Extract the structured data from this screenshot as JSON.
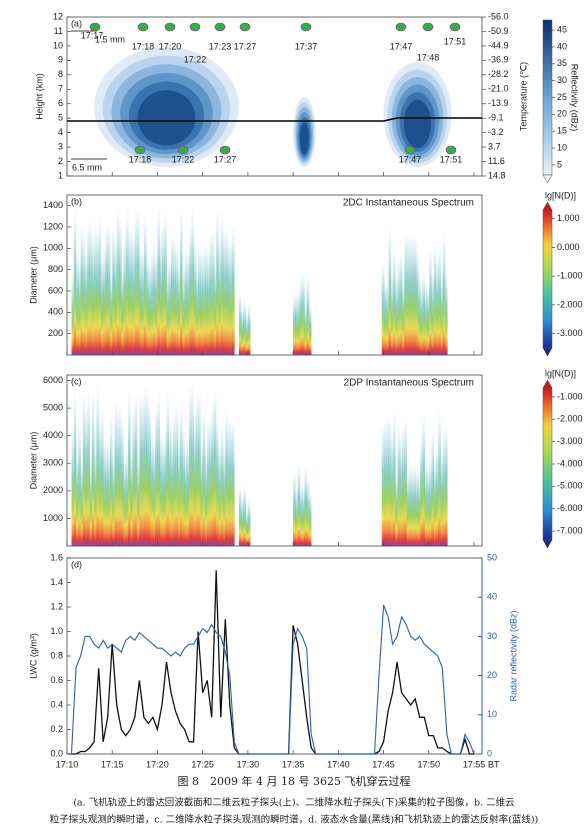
{
  "chart_data": [
    {
      "type": "heatmap",
      "label": "(a)",
      "ylabel": "Height (km)",
      "y2label": "Temperature (℃)",
      "ylim": [
        1,
        12
      ],
      "yticks": [
        1,
        2,
        3,
        4,
        5,
        6,
        7,
        8,
        9,
        10,
        11,
        12
      ],
      "y2ticks": [
        {
          "value": 12,
          "label": "-56.0"
        },
        {
          "value": 11,
          "label": "-50.9"
        },
        {
          "value": 10,
          "label": "-44.9"
        },
        {
          "value": 9,
          "label": "-36.9"
        },
        {
          "value": 8,
          "label": "-28.2"
        },
        {
          "value": 7,
          "label": "-21.0"
        },
        {
          "value": 6,
          "label": "-13.9"
        },
        {
          "value": 5,
          "label": "-9.1"
        },
        {
          "value": 4,
          "label": "-3.2"
        },
        {
          "value": 3,
          "label": "3.7"
        },
        {
          "value": 2,
          "label": "11.6"
        },
        {
          "value": 1,
          "label": "14.8"
        }
      ],
      "colorbar": {
        "label": "Reflectivity (dBz)",
        "clim": [
          2,
          48
        ],
        "ticks": [
          5,
          10,
          15,
          20,
          25,
          30,
          35,
          40,
          45
        ]
      },
      "annotations": [
        "1.5 mm",
        "6.5 mm",
        "17:17",
        "17:18",
        "17:20",
        "17:22",
        "17:23",
        "17:27",
        "17:37",
        "17:47",
        "17:48",
        "17:51",
        "17:18",
        "17:22",
        "17:27",
        "17:47",
        "17:51"
      ]
    },
    {
      "type": "heatmap",
      "label": "(b)",
      "title": "2DC Instantaneous Spectrum",
      "ylabel": "Diameter (μm)",
      "ylim": [
        0,
        1500
      ],
      "yticks": [
        200,
        400,
        600,
        800,
        1000,
        1200,
        1400
      ],
      "colorbar": {
        "label": "lg[N(D)]",
        "clim": [
          -3.5,
          1.3
        ],
        "ticks": [
          {
            "value": 1,
            "label": "1.000"
          },
          {
            "value": 0,
            "label": "0.000"
          },
          {
            "value": -1,
            "label": "-1.000"
          },
          {
            "value": -2,
            "label": "-2.000"
          },
          {
            "value": -3,
            "label": "-3.000"
          }
        ]
      }
    },
    {
      "type": "heatmap",
      "label": "(c)",
      "title": "2DP Instantaneous Spectrum",
      "ylabel": "Diameter (μm)",
      "ylim": [
        0,
        6200
      ],
      "yticks": [
        1000,
        2000,
        3000,
        4000,
        5000,
        6000
      ],
      "colorbar": {
        "label": "lg[N(D)]",
        "clim": [
          -7.4,
          -0.6
        ],
        "ticks": [
          {
            "value": -1,
            "label": "-1.000"
          },
          {
            "value": -2,
            "label": "-2.000"
          },
          {
            "value": -3,
            "label": "-3.000"
          },
          {
            "value": -4,
            "label": "-4.000"
          },
          {
            "value": -5,
            "label": "-5.000"
          },
          {
            "value": -6,
            "label": "-6.000"
          },
          {
            "value": -7,
            "label": "-7.000"
          }
        ]
      }
    },
    {
      "type": "line",
      "label": "(d)",
      "ylabel": "LWC (g/m³)",
      "y2label": "Radar reflectivity (dBz)",
      "xunit": "BT",
      "xlim": [
        10,
        55
      ],
      "xticks": [
        {
          "value": 10,
          "label": "17:10"
        },
        {
          "value": 15,
          "label": "17:15"
        },
        {
          "value": 20,
          "label": "17:20"
        },
        {
          "value": 25,
          "label": "17:25"
        },
        {
          "value": 30,
          "label": "17:30"
        },
        {
          "value": 35,
          "label": "17:35"
        },
        {
          "value": 40,
          "label": "17:40"
        },
        {
          "value": 45,
          "label": "17:45"
        },
        {
          "value": 50,
          "label": "17:50"
        },
        {
          "value": 55,
          "label": "17:55"
        }
      ],
      "ylim": [
        0,
        1.6
      ],
      "yticks": [
        {
          "value": 0,
          "label": "0.0"
        },
        0.2,
        0.4,
        0.6,
        0.8,
        {
          "value": 1,
          "label": "1.0"
        },
        1.2,
        1.4,
        1.6
      ],
      "y2lim": [
        0,
        50
      ],
      "y2ticks": [
        0,
        10,
        20,
        30,
        40,
        50
      ],
      "x": [
        10,
        10.5,
        11,
        11.5,
        12,
        12.5,
        13,
        13.5,
        14,
        14.5,
        15,
        15.5,
        16,
        16.5,
        17,
        17.5,
        18,
        18.5,
        19,
        19.5,
        20,
        20.5,
        21,
        21.5,
        22,
        22.5,
        23,
        23.5,
        24,
        24.5,
        25,
        25.5,
        26,
        26.5,
        27,
        27.5,
        28,
        28.5,
        29,
        29.5,
        30,
        30.5,
        31,
        31.5,
        32,
        32.5,
        33,
        33.5,
        34,
        34.5,
        35,
        35.5,
        36,
        36.5,
        37,
        37.5,
        38,
        38.5,
        39,
        39.5,
        40,
        40.5,
        41,
        41.5,
        42,
        42.5,
        43,
        43.5,
        44,
        44.5,
        45,
        45.5,
        46,
        46.5,
        47,
        47.5,
        48,
        48.5,
        49,
        49.5,
        50,
        50.5,
        51,
        51.5,
        52,
        52.5,
        53,
        53.5,
        54,
        54.5,
        55
      ],
      "series": [
        {
          "name": "LWC",
          "color": "#111111",
          "values": [
            0,
            0,
            0,
            0.02,
            0.02,
            0.05,
            0.1,
            0.7,
            0.1,
            0.3,
            0.9,
            0.4,
            0.2,
            0.15,
            0.2,
            0.3,
            0.6,
            0.3,
            0.25,
            0.3,
            0.2,
            0.4,
            0.75,
            0.5,
            0.35,
            0.25,
            0.2,
            0.1,
            0.1,
            1.0,
            0.5,
            0.6,
            0.3,
            1.5,
            0.3,
            1.1,
            0.4,
            0.05,
            0,
            0,
            0,
            0,
            0,
            0,
            0,
            0,
            0,
            0,
            0,
            0,
            1.05,
            0.9,
            0.6,
            0.3,
            0.05,
            0,
            0,
            0,
            0,
            0,
            0,
            0,
            0,
            0,
            0,
            0,
            0,
            0,
            0,
            0.02,
            0.1,
            0.35,
            0.5,
            0.75,
            0.5,
            0.45,
            0.4,
            0.45,
            0.3,
            0.3,
            0.15,
            0.15,
            0.05,
            0.05,
            0.02,
            0,
            0,
            0,
            0.12,
            0,
            0
          ]
        },
        {
          "name": "Radar reflectivity",
          "color": "#2c5fb0",
          "axis": "y2",
          "values": [
            0,
            0,
            22,
            25,
            30,
            30,
            28,
            27,
            29,
            27,
            28,
            27,
            26,
            29,
            30,
            29,
            31,
            30,
            29,
            28,
            27,
            27,
            26,
            25,
            26,
            25,
            27,
            28,
            28,
            30,
            32,
            31,
            33,
            31,
            30,
            26,
            20,
            3,
            0,
            0,
            0,
            0,
            0,
            0,
            0,
            0,
            0,
            0,
            0,
            0,
            28,
            32,
            30,
            27,
            5,
            0,
            0,
            0,
            0,
            0,
            0,
            0,
            0,
            0,
            0,
            0,
            0,
            0,
            0,
            20,
            38,
            35,
            28,
            30,
            35,
            33,
            30,
            29,
            30,
            28,
            27,
            26,
            25,
            22,
            5,
            0,
            0,
            0,
            5,
            3,
            0
          ]
        }
      ]
    }
  ],
  "caption": {
    "title": "图 8　2009 年 4 月 18 号 3625 飞机穿云过程",
    "notes": [
      "(a. 飞机轨迹上的雷达回波截面和二维云粒子探头(上)、二维降水粒子探头(下)采集的粒子图像，b. 二维云",
      "粒子探头观测的瞬时谱，c. 二维降水粒子探头观测的瞬时谱，d. 液态水含量(黑线)和飞机轨迹上的雷达反射率(蓝线))"
    ]
  }
}
